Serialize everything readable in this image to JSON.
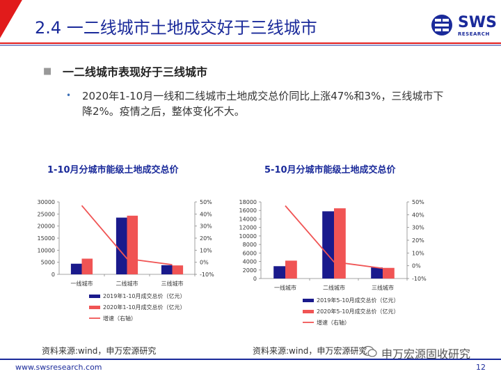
{
  "header": {
    "title": "2.4 一二线城市土地成交好于三线城市"
  },
  "logo": {
    "text": "SWS",
    "sub": "RESEARCH"
  },
  "section": {
    "heading": "一二线城市表现好于三线城市",
    "body": "2020年1-10月一线和二线城市土地成交总价同比上涨47%和3%，三线城市下降2%。疫情之后，整体变化不大。"
  },
  "colors": {
    "navy": "#1a1a8c",
    "red": "#f05454",
    "line": "#f05454"
  },
  "chart_data": [
    {
      "type": "bar",
      "title": "1-10月分城市能级土地成交总价",
      "categories": [
        "一线城市",
        "二线城市",
        "三线城市"
      ],
      "series": [
        {
          "name": "2019年1-10月成交总价（亿元）",
          "values": [
            4400,
            23500,
            3800
          ]
        },
        {
          "name": "2020年1-10月成交总价（亿元）",
          "values": [
            6500,
            24300,
            3700
          ]
        }
      ],
      "line_series": {
        "name": "增速（右轴）",
        "values": [
          47,
          3,
          -2
        ]
      },
      "ylim": [
        0,
        30000
      ],
      "yticks": [
        "0",
        "5000",
        "10000",
        "15000",
        "20000",
        "25000",
        "30000"
      ],
      "y2lim": [
        -10,
        50
      ],
      "y2ticks": [
        "-10%",
        "0%",
        "10%",
        "20%",
        "30%",
        "40%",
        "50%"
      ],
      "source": "资料来源:wind，申万宏源研究"
    },
    {
      "type": "bar",
      "title": "5-10月分城市能级土地成交总价",
      "categories": [
        "一线城市",
        "二线城市",
        "三线城市"
      ],
      "series": [
        {
          "name": "2019年5-10月成交总价（亿元）",
          "values": [
            2900,
            15800,
            2600
          ]
        },
        {
          "name": "2020年5-10月成交总价（亿元）",
          "values": [
            4200,
            16500,
            2500
          ]
        }
      ],
      "line_series": {
        "name": "增速（右轴）",
        "values": [
          47,
          3,
          -2
        ]
      },
      "ylim": [
        0,
        18000
      ],
      "yticks": [
        "0",
        "2000",
        "4000",
        "6000",
        "8000",
        "10000",
        "12000",
        "14000",
        "16000",
        "18000"
      ],
      "y2lim": [
        -10,
        50
      ],
      "y2ticks": [
        "-10%",
        "0%",
        "10%",
        "20%",
        "30%",
        "40%",
        "50%"
      ],
      "source": "资料来源:wind，申万宏源研究"
    }
  ],
  "watermark": "申万宏源固收研究",
  "footer": {
    "url": "www.swsresearch.com",
    "page": "12"
  }
}
